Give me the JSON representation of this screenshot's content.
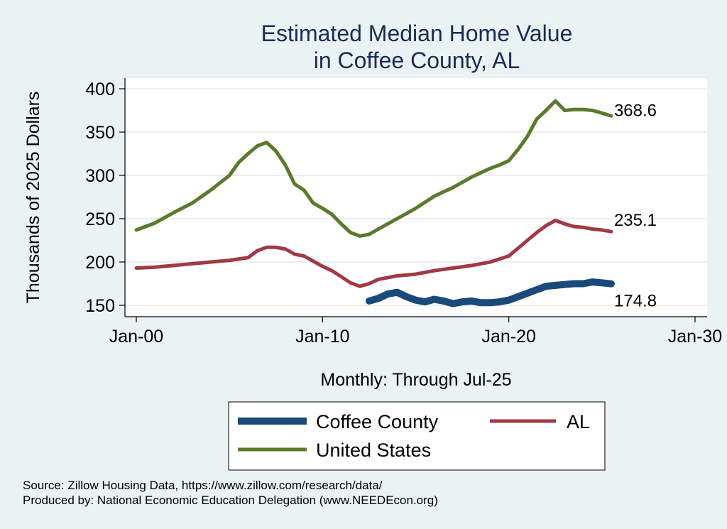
{
  "chart_data": {
    "type": "line",
    "title": [
      "Estimated Median Home Value",
      "in Coffee County, AL"
    ],
    "xlabel": "Monthly: Through Jul-25",
    "ylabel": "Thousands of 2025 Dollars",
    "xlim": [
      "2000-01",
      "2030-01"
    ],
    "ylim": [
      150,
      400
    ],
    "x_ticks": [
      "Jan-00",
      "Jan-10",
      "Jan-20",
      "Jan-30"
    ],
    "y_ticks": [
      150,
      200,
      250,
      300,
      350,
      400
    ],
    "grid": true,
    "legend_position": "bottom",
    "series": [
      {
        "name": "Coffee County",
        "color": "#1a4a7a",
        "end_label": "174.8",
        "points": [
          [
            "2012-07",
            155
          ],
          [
            "2013-01",
            158
          ],
          [
            "2013-07",
            163
          ],
          [
            "2014-01",
            165
          ],
          [
            "2014-07",
            160
          ],
          [
            "2015-01",
            156
          ],
          [
            "2015-07",
            154
          ],
          [
            "2016-01",
            157
          ],
          [
            "2016-07",
            155
          ],
          [
            "2017-01",
            152
          ],
          [
            "2017-07",
            154
          ],
          [
            "2018-01",
            155
          ],
          [
            "2018-07",
            153
          ],
          [
            "2019-01",
            153
          ],
          [
            "2019-07",
            154
          ],
          [
            "2020-01",
            156
          ],
          [
            "2020-07",
            160
          ],
          [
            "2021-01",
            164
          ],
          [
            "2021-07",
            168
          ],
          [
            "2022-01",
            172
          ],
          [
            "2022-07",
            173
          ],
          [
            "2023-01",
            174
          ],
          [
            "2023-07",
            175
          ],
          [
            "2024-01",
            175
          ],
          [
            "2024-07",
            177
          ],
          [
            "2025-01",
            176
          ],
          [
            "2025-07",
            174.8
          ]
        ]
      },
      {
        "name": "AL",
        "color": "#a13a45",
        "end_label": "235.1",
        "points": [
          [
            "2000-01",
            193
          ],
          [
            "2001-01",
            194
          ],
          [
            "2002-01",
            196
          ],
          [
            "2003-01",
            198
          ],
          [
            "2004-01",
            200
          ],
          [
            "2005-01",
            202
          ],
          [
            "2006-01",
            205
          ],
          [
            "2006-07",
            213
          ],
          [
            "2007-01",
            217
          ],
          [
            "2007-07",
            217
          ],
          [
            "2008-01",
            215
          ],
          [
            "2008-07",
            209
          ],
          [
            "2009-01",
            207
          ],
          [
            "2009-07",
            201
          ],
          [
            "2010-01",
            195
          ],
          [
            "2010-07",
            190
          ],
          [
            "2011-01",
            183
          ],
          [
            "2011-07",
            176
          ],
          [
            "2012-01",
            172
          ],
          [
            "2012-07",
            175
          ],
          [
            "2013-01",
            180
          ],
          [
            "2014-01",
            184
          ],
          [
            "2015-01",
            186
          ],
          [
            "2016-01",
            190
          ],
          [
            "2017-01",
            193
          ],
          [
            "2018-01",
            196
          ],
          [
            "2019-01",
            200
          ],
          [
            "2020-01",
            207
          ],
          [
            "2020-07",
            216
          ],
          [
            "2021-01",
            225
          ],
          [
            "2021-07",
            234
          ],
          [
            "2022-01",
            242
          ],
          [
            "2022-07",
            248
          ],
          [
            "2023-01",
            244
          ],
          [
            "2023-07",
            241
          ],
          [
            "2024-01",
            240
          ],
          [
            "2024-07",
            238
          ],
          [
            "2025-01",
            237
          ],
          [
            "2025-07",
            235.1
          ]
        ]
      },
      {
        "name": "United States",
        "color": "#5a7a2c",
        "end_label": "368.6",
        "points": [
          [
            "2000-01",
            237
          ],
          [
            "2001-01",
            245
          ],
          [
            "2002-01",
            257
          ],
          [
            "2003-01",
            268
          ],
          [
            "2004-01",
            283
          ],
          [
            "2005-01",
            300
          ],
          [
            "2005-07",
            315
          ],
          [
            "2006-01",
            325
          ],
          [
            "2006-07",
            334
          ],
          [
            "2007-01",
            338
          ],
          [
            "2007-07",
            328
          ],
          [
            "2008-01",
            312
          ],
          [
            "2008-07",
            290
          ],
          [
            "2009-01",
            283
          ],
          [
            "2009-07",
            268
          ],
          [
            "2010-01",
            262
          ],
          [
            "2010-07",
            255
          ],
          [
            "2011-01",
            244
          ],
          [
            "2011-07",
            234
          ],
          [
            "2012-01",
            230
          ],
          [
            "2012-07",
            232
          ],
          [
            "2013-01",
            238
          ],
          [
            "2014-01",
            250
          ],
          [
            "2015-01",
            262
          ],
          [
            "2016-01",
            276
          ],
          [
            "2017-01",
            286
          ],
          [
            "2018-01",
            298
          ],
          [
            "2019-01",
            308
          ],
          [
            "2019-07",
            312
          ],
          [
            "2020-01",
            317
          ],
          [
            "2020-07",
            330
          ],
          [
            "2021-01",
            345
          ],
          [
            "2021-07",
            365
          ],
          [
            "2022-01",
            375
          ],
          [
            "2022-07",
            386
          ],
          [
            "2023-01",
            375
          ],
          [
            "2023-07",
            376
          ],
          [
            "2024-01",
            376
          ],
          [
            "2024-07",
            375
          ],
          [
            "2025-01",
            372
          ],
          [
            "2025-07",
            368.6
          ]
        ]
      }
    ]
  },
  "notes": [
    "Source: Zillow Housing Data, https://www.zillow.com/research/data/",
    "Produced by: National Economic Education Delegation (www.NEEDEcon.org)"
  ]
}
